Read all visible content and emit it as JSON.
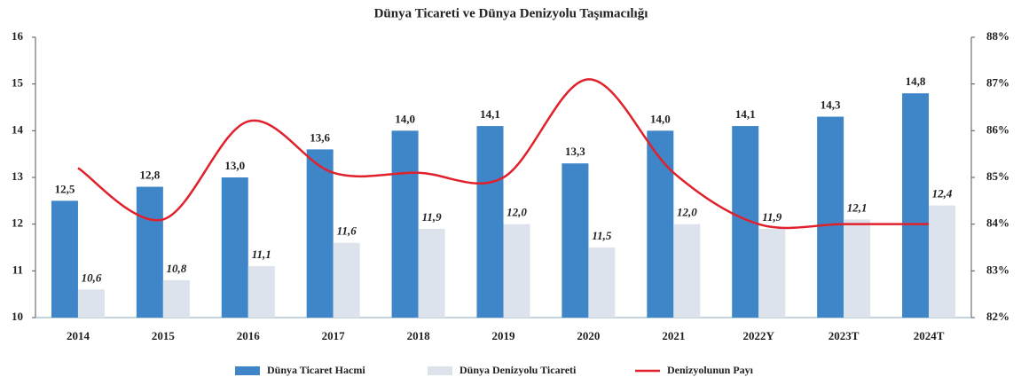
{
  "chart_data": {
    "type": "bar_line",
    "title": "Dünya Ticareti ve Dünya Denizyolu Taşımacılığı",
    "categories": [
      "2014",
      "2015",
      "2016",
      "2017",
      "2018",
      "2019",
      "2020",
      "2021",
      "2022Y",
      "2023T",
      "2024T"
    ],
    "series": [
      {
        "name": "Dünya Ticaret Hacmi",
        "color": "#3f86c8",
        "type": "bar",
        "values": [
          12.5,
          12.8,
          13.0,
          13.6,
          14.0,
          14.1,
          13.3,
          14.0,
          14.1,
          14.3,
          14.8
        ],
        "value_labels": [
          "12,5",
          "12,8",
          "13,0",
          "13,6",
          "14,0",
          "14,1",
          "13,3",
          "14,0",
          "14,1",
          "14,3",
          "14,8"
        ]
      },
      {
        "name": "Dünya Denizyolu Ticareti",
        "color": "#dde3ec",
        "type": "bar",
        "values": [
          10.6,
          10.8,
          11.1,
          11.6,
          11.9,
          12.0,
          11.5,
          12.0,
          11.9,
          12.1,
          12.4
        ],
        "value_labels": [
          "10,6",
          "10,8",
          "11,1",
          "11,6",
          "11,9",
          "12,0",
          "11,5",
          "12,0",
          "11,9",
          "12,1",
          "12,4"
        ]
      },
      {
        "name": "Denizyolunun Payı",
        "color": "#e0202a",
        "type": "line",
        "axis": "y2",
        "values": [
          85.2,
          84.1,
          86.2,
          85.1,
          85.1,
          85.0,
          87.1,
          85.1,
          84.0,
          84.0,
          84.0
        ]
      }
    ],
    "ylim": [
      10,
      16
    ],
    "yticks": [
      10,
      11,
      12,
      13,
      14,
      15,
      16
    ],
    "y2lim": [
      82,
      88
    ],
    "y2ticks": [
      {
        "value": 82,
        "label": "82%"
      },
      {
        "value": 83,
        "label": "83%"
      },
      {
        "value": 84,
        "label": "84%"
      },
      {
        "value": 85,
        "label": "85%"
      },
      {
        "value": 86,
        "label": "86%"
      },
      {
        "value": 87,
        "label": "87%"
      },
      {
        "value": 88,
        "label": "88%"
      }
    ]
  }
}
